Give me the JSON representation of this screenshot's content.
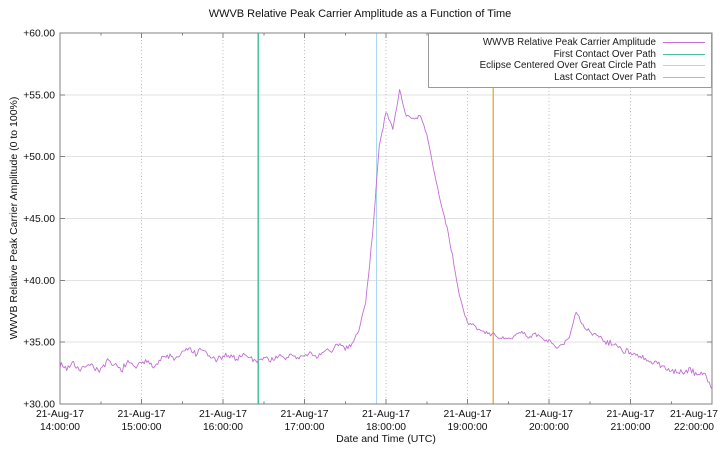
{
  "chart_data": {
    "type": "line",
    "title": "WWVB Relative Peak Carrier Amplitude as a Function of Time",
    "xlabel": "Date and Time (UTC)",
    "ylabel": "WWVB Relative Peak Carrier Amplitude (0 to 100%)",
    "grid": true,
    "legend_position": "top-right-inside",
    "ylim": [
      30,
      60
    ],
    "xlim_utc": [
      "14:00",
      "22:00"
    ],
    "y_ticks": [
      "+30.00",
      "+35.00",
      "+40.00",
      "+45.00",
      "+50.00",
      "+55.00",
      "+60.00"
    ],
    "x_tick_date": "21-Aug-17",
    "x_ticks_time": [
      "14:00:00",
      "15:00:00",
      "16:00:00",
      "17:00:00",
      "18:00:00",
      "19:00:00",
      "20:00:00",
      "21:00:00",
      "22:00:00"
    ],
    "x_minor_tick_interval_minutes": 30,
    "axis_color": "#808080",
    "grid_h_color": "#e2e2e2",
    "grid_v_color": "#bcbcbc",
    "series": [
      {
        "name": "WWVB Relative Peak Carrier Amplitude",
        "color": "#c26fd4",
        "sample_interval_minutes": 5,
        "t": [
          "14:00",
          "14:05",
          "14:10",
          "14:15",
          "14:20",
          "14:25",
          "14:30",
          "14:35",
          "14:40",
          "14:45",
          "14:50",
          "14:55",
          "15:00",
          "15:05",
          "15:10",
          "15:15",
          "15:20",
          "15:25",
          "15:30",
          "15:35",
          "15:40",
          "15:45",
          "15:50",
          "15:55",
          "16:00",
          "16:05",
          "16:10",
          "16:15",
          "16:20",
          "16:25",
          "16:30",
          "16:35",
          "16:40",
          "16:45",
          "16:50",
          "16:55",
          "17:00",
          "17:05",
          "17:10",
          "17:15",
          "17:20",
          "17:25",
          "17:30",
          "17:35",
          "17:40",
          "17:45",
          "17:50",
          "17:55",
          "18:00",
          "18:05",
          "18:10",
          "18:15",
          "18:20",
          "18:25",
          "18:30",
          "18:35",
          "18:40",
          "18:45",
          "18:50",
          "18:55",
          "19:00",
          "19:05",
          "19:10",
          "19:15",
          "19:20",
          "19:25",
          "19:30",
          "19:35",
          "19:40",
          "19:45",
          "19:50",
          "19:55",
          "20:00",
          "20:05",
          "20:10",
          "20:15",
          "20:20",
          "20:25",
          "20:30",
          "20:35",
          "20:40",
          "20:45",
          "20:50",
          "20:55",
          "21:00",
          "21:05",
          "21:10",
          "21:15",
          "21:20",
          "21:25",
          "21:30",
          "21:35",
          "21:40",
          "21:45",
          "21:50",
          "21:55",
          "22:00"
        ],
        "v": [
          33.2,
          32.9,
          33.4,
          32.6,
          33.3,
          33.0,
          32.7,
          33.4,
          33.1,
          32.8,
          33.3,
          33.0,
          33.2,
          33.5,
          33.1,
          33.7,
          33.9,
          33.6,
          34.1,
          34.5,
          34.0,
          34.4,
          33.8,
          33.6,
          33.7,
          34.0,
          33.6,
          34.1,
          33.7,
          33.5,
          33.8,
          33.5,
          33.9,
          33.6,
          34.0,
          33.7,
          33.9,
          34.1,
          33.8,
          34.4,
          34.1,
          34.9,
          34.5,
          34.9,
          35.9,
          38.3,
          43.5,
          51.0,
          53.5,
          52.2,
          55.4,
          53.3,
          52.9,
          53.3,
          51.8,
          49.0,
          46.4,
          44.3,
          41.3,
          38.3,
          36.6,
          36.3,
          35.9,
          35.7,
          35.6,
          35.3,
          35.2,
          35.6,
          35.8,
          35.4,
          35.7,
          35.3,
          35.1,
          34.6,
          34.9,
          35.4,
          37.4,
          36.3,
          35.8,
          35.6,
          35.2,
          34.9,
          34.7,
          34.4,
          34.1,
          33.8,
          33.6,
          33.4,
          33.2,
          32.9,
          32.8,
          32.6,
          32.5,
          32.7,
          32.4,
          32.4,
          31.2
        ]
      }
    ],
    "events": [
      {
        "id": "first-contact",
        "label": "First Contact Over Path",
        "time_utc": "16:26",
        "color": "#49bf9d"
      },
      {
        "id": "eclipse-centered",
        "label": "Eclipse Centered Over Great Circle Path",
        "time_utc": "17:53",
        "color": "#a9d9ee"
      },
      {
        "id": "last-contact",
        "label": "Last Contact Over Path",
        "time_utc": "19:19",
        "color": "#f2ae4e"
      }
    ]
  }
}
